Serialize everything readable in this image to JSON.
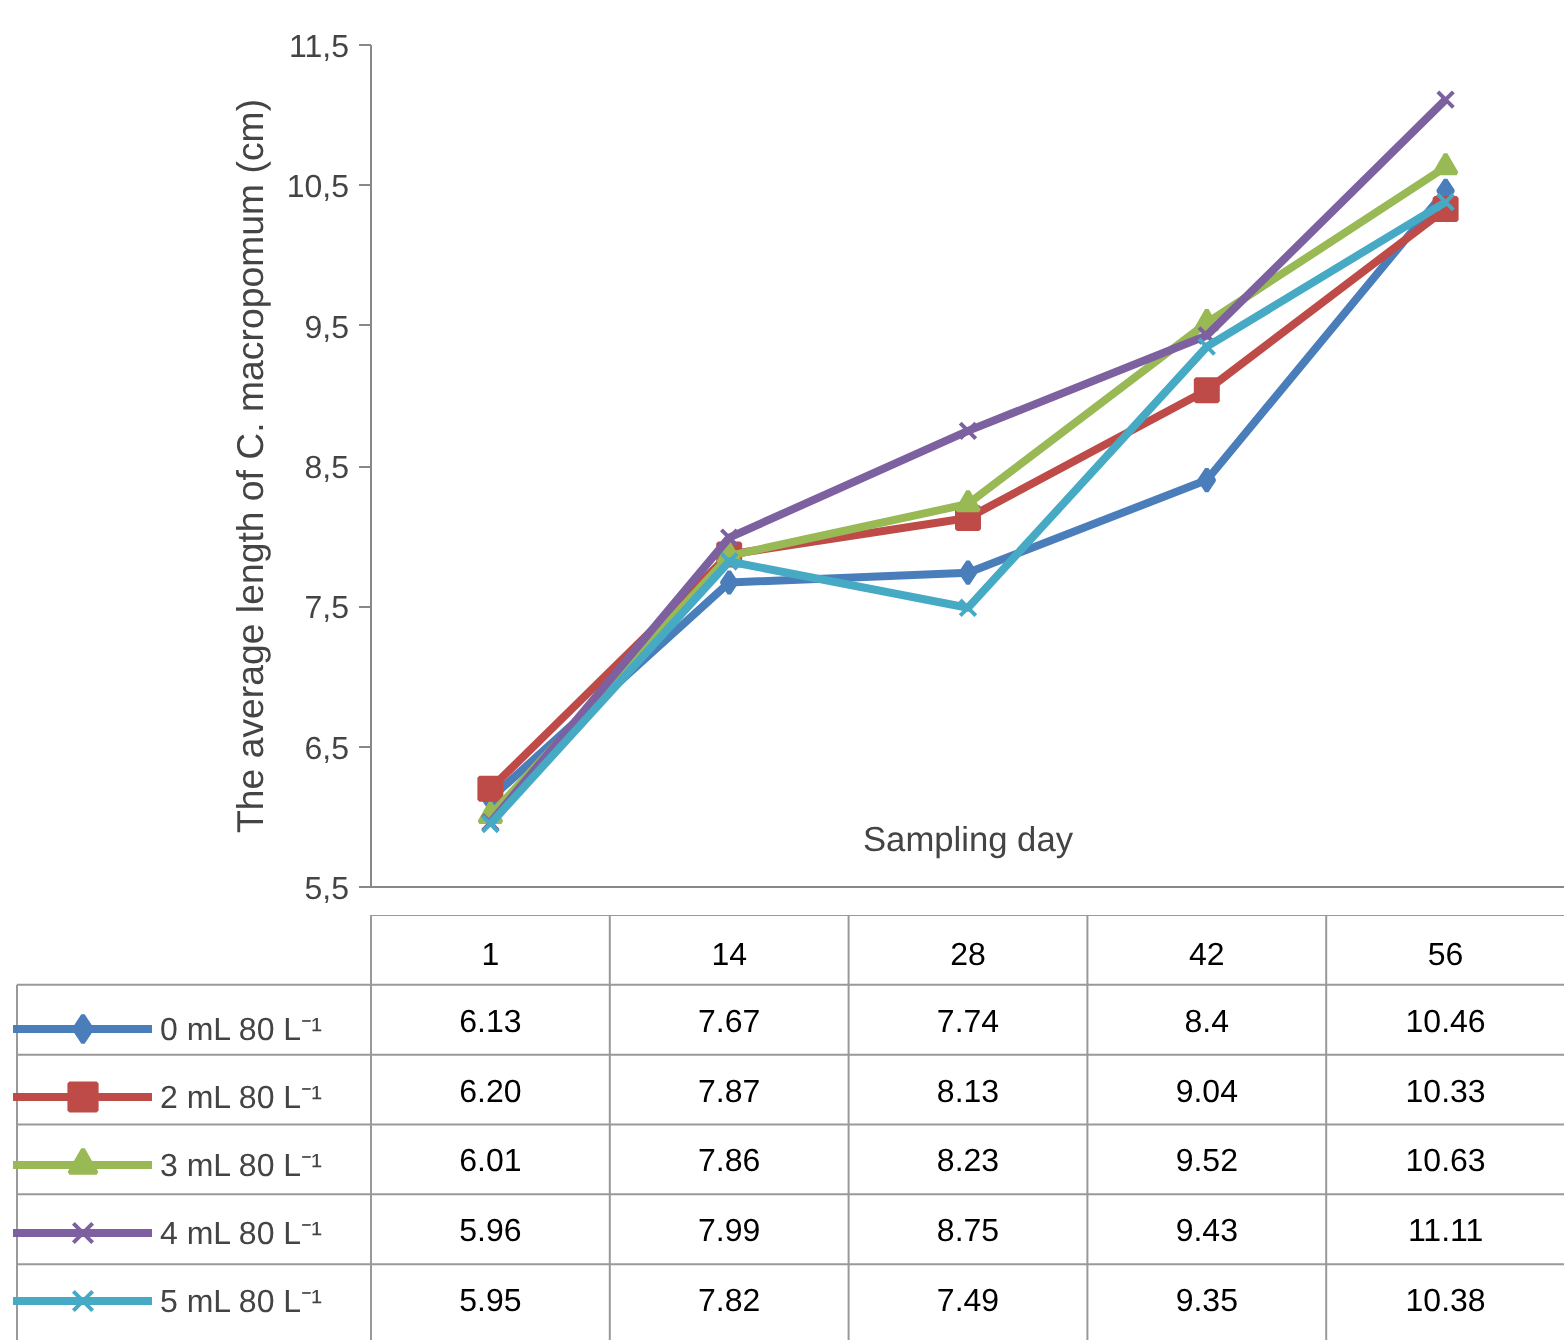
{
  "chart_data": {
    "type": "line",
    "xlabel": "Sampling day",
    "ylabel": "The average length of C. macropomum (cm)",
    "categories": [
      "1",
      "14",
      "28",
      "42",
      "56"
    ],
    "ylim": [
      5.5,
      11.5
    ],
    "yticks": [
      {
        "value": 5.5,
        "label": "5,5"
      },
      {
        "value": 6.5,
        "label": "6,5"
      },
      {
        "value": 7.5,
        "label": "7,5"
      },
      {
        "value": 8.5,
        "label": "8,5"
      },
      {
        "value": 9.5,
        "label": "9,5"
      },
      {
        "value": 10.5,
        "label": "10,5"
      },
      {
        "value": 11.5,
        "label": "11,5"
      }
    ],
    "grid": false,
    "legend": "bottom left",
    "series": [
      {
        "name": "0 mL 80 L⁻¹",
        "color": "#4a7ebb",
        "marker": "diamond",
        "values": [
          6.13,
          7.67,
          7.74,
          8.4,
          10.46
        ],
        "value_labels": [
          "6.13",
          "7.67",
          "7.74",
          "8.4",
          "10.46"
        ]
      },
      {
        "name": "2 mL 80 L⁻¹",
        "color": "#be4b48",
        "marker": "square",
        "values": [
          6.2,
          7.87,
          8.13,
          9.04,
          10.33
        ],
        "value_labels": [
          "6.20",
          "7.87",
          "8.13",
          "9.04",
          "10.33"
        ]
      },
      {
        "name": "3 mL 80 L⁻¹",
        "color": "#98b954",
        "marker": "triangle",
        "values": [
          6.01,
          7.86,
          8.23,
          9.52,
          10.63
        ],
        "value_labels": [
          "6.01",
          "7.86",
          "8.23",
          "9.52",
          "10.63"
        ]
      },
      {
        "name": "4 mL 80 L⁻¹",
        "color": "#7d60a0",
        "marker": "cross",
        "values": [
          5.96,
          7.99,
          8.75,
          9.43,
          11.11
        ],
        "value_labels": [
          "5.96",
          "7.99",
          "8.75",
          "9.43",
          "11.11"
        ]
      },
      {
        "name": "5 mL 80 L⁻¹",
        "color": "#46aac5",
        "marker": "cross",
        "values": [
          5.95,
          7.82,
          7.49,
          9.35,
          10.38
        ],
        "value_labels": [
          "5.95",
          "7.82",
          "7.49",
          "9.35",
          "10.38"
        ]
      }
    ]
  }
}
